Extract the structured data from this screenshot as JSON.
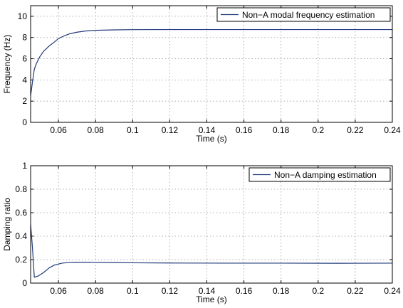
{
  "chart_data": [
    {
      "type": "line",
      "xlabel": "Time (s)",
      "ylabel": "Frequency (Hz)",
      "xlim": [
        0.045,
        0.24
      ],
      "ylim": [
        0,
        11
      ],
      "xticks": [
        0.06,
        0.08,
        0.1,
        0.12,
        0.14,
        0.16,
        0.18,
        0.2,
        0.22,
        0.24
      ],
      "xtick_labels": [
        "0.06",
        "0.08",
        "0.1",
        "0.12",
        "0.14",
        "0.16",
        "0.18",
        "0.2",
        "0.22",
        "0.24"
      ],
      "yticks": [
        0,
        2,
        4,
        6,
        8,
        10
      ],
      "ytick_labels": [
        "0",
        "2",
        "4",
        "6",
        "8",
        "10"
      ],
      "grid": true,
      "legend_position": "top-right",
      "series": [
        {
          "name": "Non−A modal frequency estimation",
          "color": "#1f3a7a",
          "x": [
            0.045,
            0.046,
            0.047,
            0.048,
            0.05,
            0.052,
            0.055,
            0.058,
            0.06,
            0.063,
            0.066,
            0.07,
            0.075,
            0.08,
            0.09,
            0.1,
            0.12,
            0.15,
            0.18,
            0.21,
            0.24
          ],
          "y": [
            2.5,
            3.8,
            5.0,
            5.5,
            6.2,
            6.7,
            7.2,
            7.6,
            7.9,
            8.15,
            8.35,
            8.5,
            8.62,
            8.68,
            8.72,
            8.74,
            8.75,
            8.75,
            8.75,
            8.75,
            8.75
          ]
        }
      ]
    },
    {
      "type": "line",
      "xlabel": "Time (s)",
      "ylabel": "Damping ratio",
      "xlim": [
        0.045,
        0.24
      ],
      "ylim": [
        0,
        1
      ],
      "xticks": [
        0.06,
        0.08,
        0.1,
        0.12,
        0.14,
        0.16,
        0.18,
        0.2,
        0.22,
        0.24
      ],
      "xtick_labels": [
        "0.06",
        "0.08",
        "0.1",
        "0.12",
        "0.14",
        "0.16",
        "0.18",
        "0.2",
        "0.22",
        "0.24"
      ],
      "yticks": [
        0,
        0.2,
        0.4,
        0.6,
        0.8,
        1
      ],
      "ytick_labels": [
        "0",
        "0.2",
        "0.4",
        "0.6",
        "0.8",
        "1"
      ],
      "grid": true,
      "legend_position": "top-right",
      "series": [
        {
          "name": "Non−A damping estimation",
          "color": "#1f3a7a",
          "x": [
            0.045,
            0.046,
            0.047,
            0.049,
            0.052,
            0.055,
            0.058,
            0.062,
            0.066,
            0.07,
            0.075,
            0.08,
            0.09,
            0.1,
            0.12,
            0.15,
            0.18,
            0.21,
            0.24
          ],
          "y": [
            0.5,
            0.3,
            0.05,
            0.06,
            0.09,
            0.13,
            0.155,
            0.17,
            0.176,
            0.178,
            0.178,
            0.177,
            0.175,
            0.173,
            0.171,
            0.17,
            0.17,
            0.169,
            0.17
          ]
        }
      ]
    }
  ]
}
